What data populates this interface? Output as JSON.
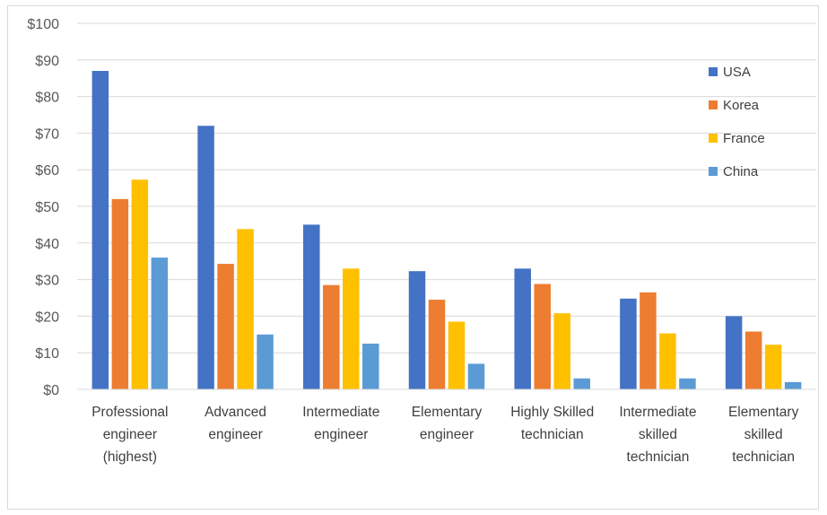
{
  "chart_data": {
    "type": "bar",
    "title": "",
    "xlabel": "",
    "ylabel": "",
    "ylim": [
      0,
      100
    ],
    "yticks": [
      "$0",
      "$10",
      "$20",
      "$30",
      "$40",
      "$50",
      "$60",
      "$70",
      "$80",
      "$90",
      "$100"
    ],
    "grid": true,
    "legend_position": "right",
    "categories": [
      [
        "Professional",
        "engineer",
        "(highest)"
      ],
      [
        "Advanced",
        "engineer"
      ],
      [
        "Intermediate",
        "engineer"
      ],
      [
        "Elementary",
        "engineer"
      ],
      [
        "Highly Skilled",
        "technician"
      ],
      [
        "Intermediate",
        "skilled",
        "technician"
      ],
      [
        "Elementary",
        "skilled",
        "technician"
      ]
    ],
    "series": [
      {
        "name": "USA",
        "color": "#4472c4",
        "values": [
          87,
          72,
          45,
          32.3,
          33,
          24.8,
          20
        ]
      },
      {
        "name": "Korea",
        "color": "#ed7d31",
        "values": [
          52,
          34.3,
          28.5,
          24.5,
          28.8,
          26.5,
          15.8
        ]
      },
      {
        "name": "France",
        "color": "#ffc000",
        "values": [
          57.3,
          43.8,
          33,
          18.5,
          20.8,
          15.3,
          12.2
        ]
      },
      {
        "name": "China",
        "color": "#5b9bd5",
        "values": [
          36,
          15,
          12.5,
          7,
          3,
          3,
          2
        ]
      }
    ]
  }
}
